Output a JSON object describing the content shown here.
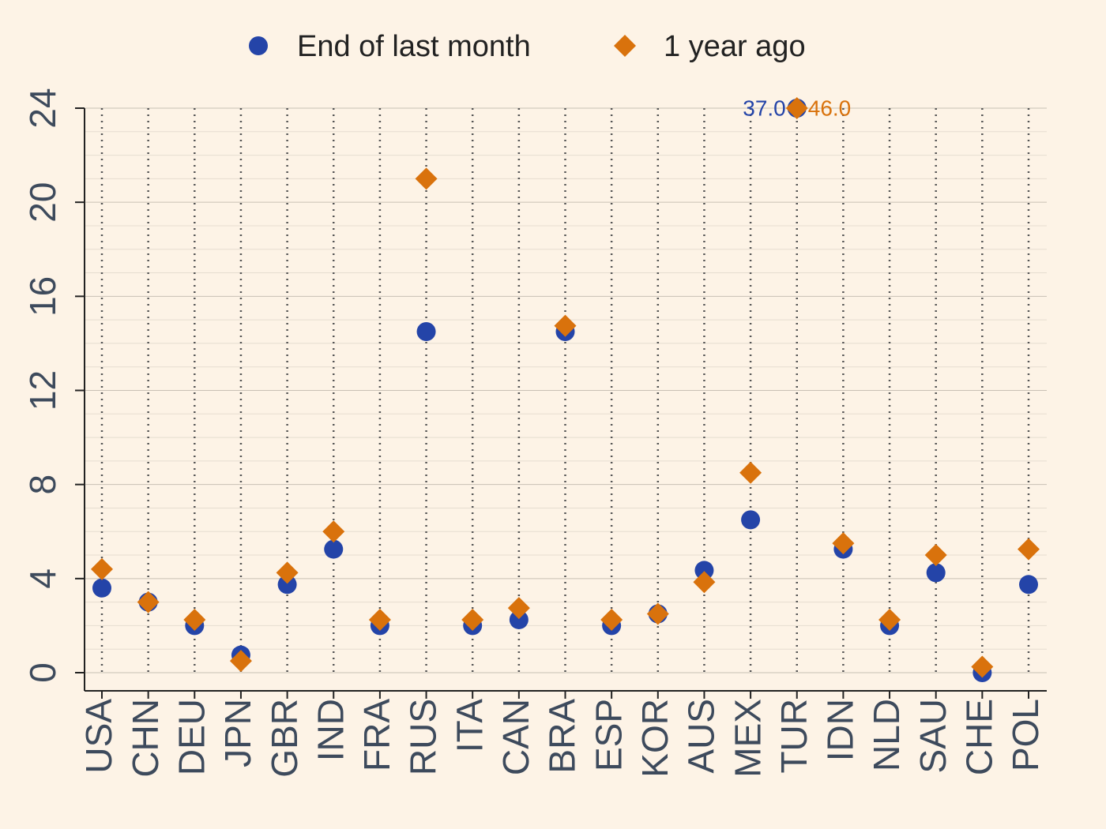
{
  "chart_data": {
    "type": "dot",
    "categories": [
      "USA",
      "CHN",
      "DEU",
      "JPN",
      "GBR",
      "IND",
      "FRA",
      "RUS",
      "ITA",
      "CAN",
      "BRA",
      "ESP",
      "KOR",
      "AUS",
      "MEX",
      "TUR",
      "IDN",
      "NLD",
      "SAU",
      "CHE",
      "POL"
    ],
    "series": [
      {
        "name": "End of last month",
        "color": "#2444a8",
        "marker": "circle",
        "values": [
          3.6,
          3.0,
          2.0,
          0.75,
          3.75,
          5.25,
          2.0,
          14.5,
          2.0,
          2.25,
          14.5,
          2.0,
          2.5,
          4.35,
          6.5,
          37,
          5.25,
          2.0,
          4.25,
          0.0,
          3.75
        ],
        "value_labels": [
          null,
          null,
          null,
          null,
          null,
          null,
          null,
          null,
          null,
          null,
          null,
          null,
          null,
          null,
          null,
          "37.0",
          null,
          null,
          null,
          null,
          null
        ]
      },
      {
        "name": "1 year ago",
        "color": "#d9720c",
        "marker": "diamond",
        "values": [
          4.4,
          3.0,
          2.25,
          0.5,
          4.25,
          6.0,
          2.25,
          21.0,
          2.25,
          2.75,
          14.75,
          2.25,
          2.5,
          3.85,
          8.5,
          46,
          5.5,
          2.25,
          5.0,
          0.25,
          5.25
        ],
        "value_labels": [
          null,
          null,
          null,
          null,
          null,
          null,
          null,
          null,
          null,
          null,
          null,
          null,
          null,
          null,
          null,
          "46.0",
          null,
          null,
          null,
          null,
          null
        ]
      }
    ],
    "ylim": [
      0,
      24
    ],
    "yticks": [
      0,
      4,
      8,
      12,
      16,
      20,
      24
    ],
    "grid": true,
    "legend": "top"
  }
}
